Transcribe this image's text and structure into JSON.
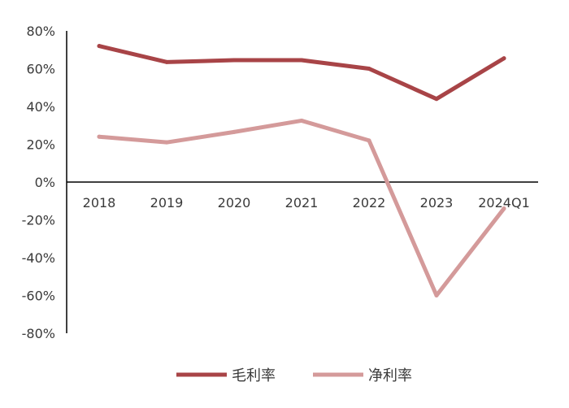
{
  "chart_data": {
    "type": "line",
    "categories": [
      "2018",
      "2019",
      "2020",
      "2021",
      "2022",
      "2023",
      "2024Q1"
    ],
    "series": [
      {
        "name": "毛利率",
        "color": "#a84447",
        "values": [
          72,
          63.5,
          64.5,
          64.5,
          60,
          44,
          65.5
        ]
      },
      {
        "name": "净利率",
        "color": "#d49a9a",
        "values": [
          24,
          21,
          26.5,
          32.5,
          22,
          -60,
          -14
        ]
      }
    ],
    "ylim": [
      -80,
      80
    ],
    "yticks": [
      -80,
      -60,
      -40,
      -20,
      0,
      20,
      40,
      60,
      80
    ],
    "ytick_labels": [
      "-80%",
      "-60%",
      "-40%",
      "-20%",
      "0%",
      "20%",
      "40%",
      "60%",
      "80%"
    ],
    "grid": false,
    "legend_position": "bottom"
  }
}
